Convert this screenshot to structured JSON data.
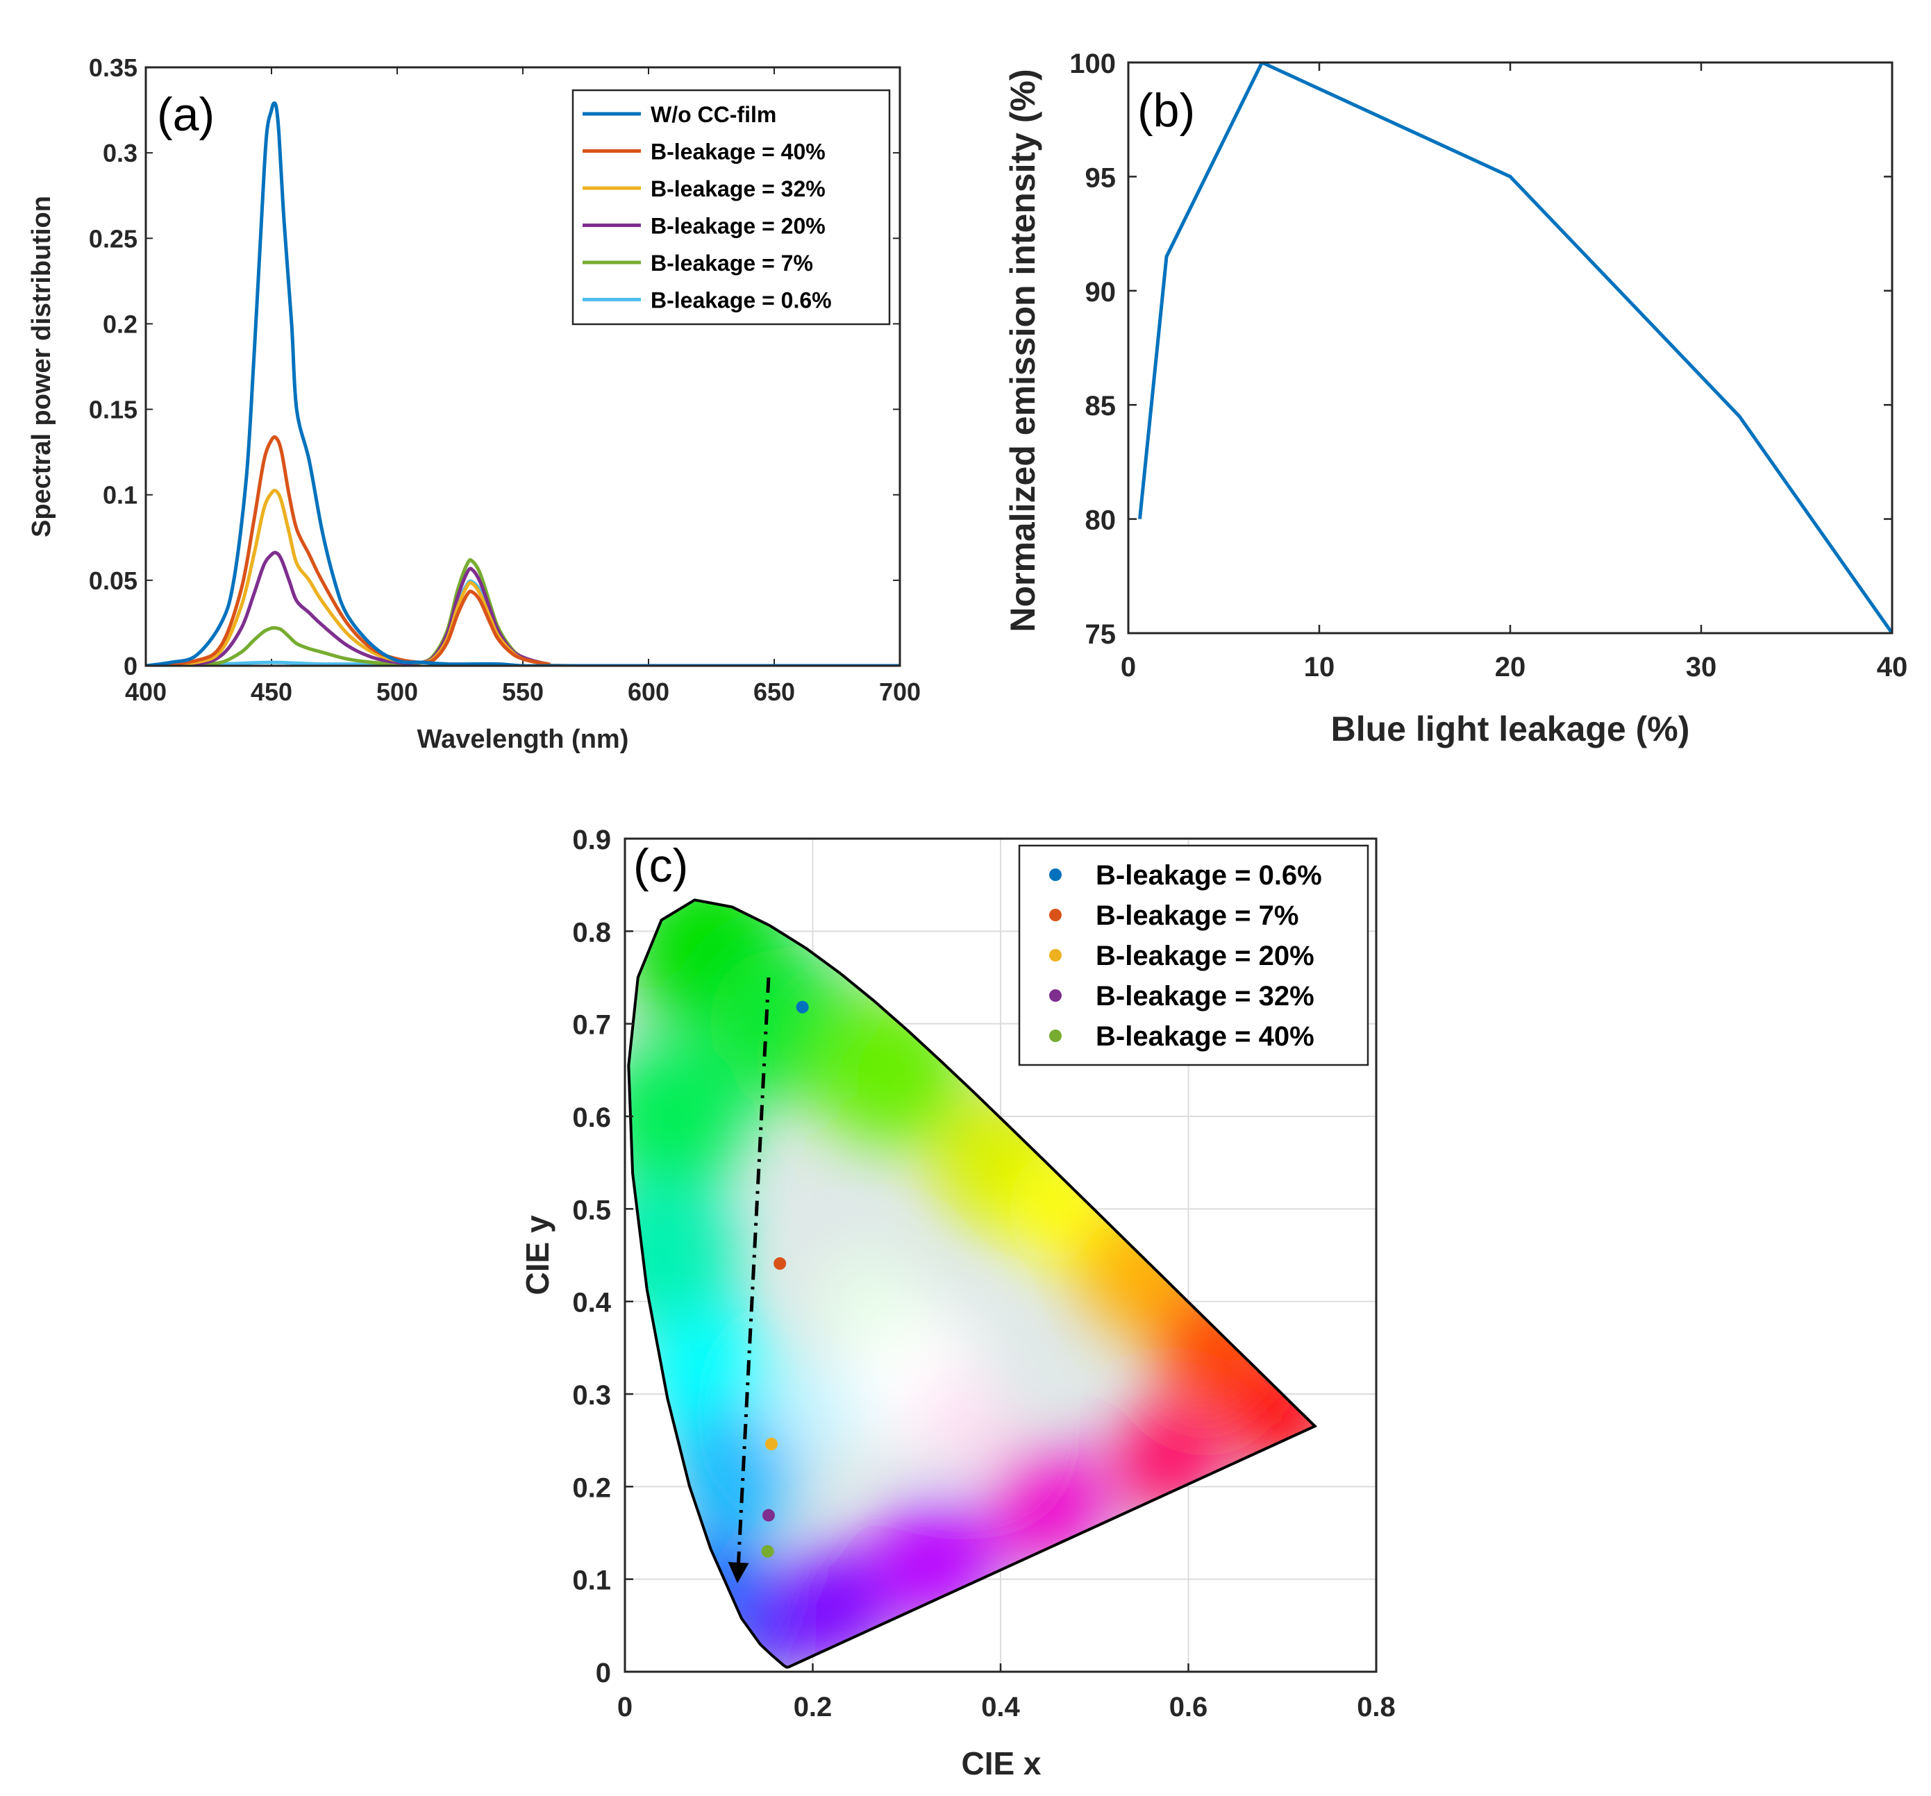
{
  "chart_data": [
    {
      "id": "a",
      "type": "line",
      "panel_label": "(a)",
      "xlabel": "Wavelength (nm)",
      "ylabel": "Spectral power distribution",
      "xlim": [
        400,
        700
      ],
      "ylim": [
        0,
        0.35
      ],
      "xticks": [
        "400",
        "450",
        "500",
        "550",
        "600",
        "650",
        "700"
      ],
      "yticks": [
        "0",
        "0.05",
        "0.1",
        "0.15",
        "0.2",
        "0.25",
        "0.3",
        "0.35"
      ],
      "legend_position": "top-right",
      "series": [
        {
          "name": "W/o CC-film",
          "color": "#0072bd",
          "x": [
            400,
            410,
            420,
            430,
            435,
            440,
            443,
            446,
            448,
            450,
            451,
            452,
            453,
            455,
            458,
            460,
            465,
            470,
            475,
            480,
            490,
            500,
            510,
            520,
            530,
            540,
            550,
            560,
            570,
            600,
            650,
            700
          ],
          "y": [
            0,
            0.002,
            0.006,
            0.025,
            0.05,
            0.11,
            0.18,
            0.26,
            0.31,
            0.325,
            0.329,
            0.326,
            0.31,
            0.26,
            0.2,
            0.15,
            0.12,
            0.08,
            0.05,
            0.03,
            0.012,
            0.003,
            0.002,
            0.001,
            0.001,
            0.001,
            0,
            0,
            0,
            0,
            0,
            0
          ]
        },
        {
          "name": "B-leakage = 40%",
          "color": "#d95319",
          "x": [
            400,
            420,
            430,
            438,
            443,
            447,
            450,
            452,
            454,
            457,
            460,
            465,
            470,
            480,
            490,
            500,
            510,
            515,
            520,
            524,
            528,
            530,
            533,
            537,
            540,
            545,
            550,
            560,
            570,
            700
          ],
          "y": [
            0,
            0.003,
            0.012,
            0.045,
            0.085,
            0.12,
            0.132,
            0.133,
            0.125,
            0.1,
            0.08,
            0.065,
            0.05,
            0.025,
            0.01,
            0.004,
            0.002,
            0.004,
            0.014,
            0.03,
            0.042,
            0.043,
            0.038,
            0.025,
            0.016,
            0.008,
            0.004,
            0.001,
            0,
            0
          ]
        },
        {
          "name": "B-leakage = 32%",
          "color": "#edb120",
          "x": [
            400,
            420,
            430,
            438,
            443,
            447,
            450,
            452,
            454,
            457,
            460,
            465,
            470,
            480,
            490,
            500,
            510,
            515,
            520,
            524,
            528,
            530,
            533,
            537,
            540,
            545,
            550,
            560,
            570,
            700
          ],
          "y": [
            0,
            0.002,
            0.009,
            0.035,
            0.065,
            0.092,
            0.101,
            0.102,
            0.096,
            0.078,
            0.06,
            0.05,
            0.038,
            0.019,
            0.008,
            0.003,
            0.002,
            0.005,
            0.016,
            0.034,
            0.047,
            0.048,
            0.042,
            0.028,
            0.018,
            0.009,
            0.004,
            0.001,
            0,
            0
          ]
        },
        {
          "name": "B-leakage = 20%",
          "color": "#7e2f8e",
          "x": [
            400,
            420,
            430,
            438,
            443,
            447,
            450,
            452,
            454,
            457,
            460,
            465,
            470,
            480,
            490,
            500,
            510,
            515,
            520,
            524,
            528,
            530,
            533,
            537,
            540,
            545,
            550,
            560,
            570,
            700
          ],
          "y": [
            0,
            0.001,
            0.006,
            0.022,
            0.042,
            0.059,
            0.065,
            0.066,
            0.062,
            0.05,
            0.038,
            0.031,
            0.024,
            0.012,
            0.005,
            0.002,
            0.002,
            0.006,
            0.019,
            0.04,
            0.055,
            0.056,
            0.049,
            0.033,
            0.021,
            0.01,
            0.005,
            0.001,
            0,
            0
          ]
        },
        {
          "name": "B-leakage = 7%",
          "color": "#77ac30",
          "x": [
            400,
            420,
            430,
            438,
            443,
            447,
            450,
            452,
            454,
            457,
            460,
            465,
            470,
            480,
            490,
            500,
            510,
            515,
            520,
            524,
            528,
            530,
            533,
            537,
            540,
            545,
            550,
            560,
            570,
            700
          ],
          "y": [
            0,
            0.001,
            0.002,
            0.008,
            0.015,
            0.02,
            0.022,
            0.022,
            0.021,
            0.017,
            0.013,
            0.01,
            0.008,
            0.004,
            0.002,
            0.001,
            0.002,
            0.007,
            0.021,
            0.044,
            0.06,
            0.061,
            0.054,
            0.036,
            0.023,
            0.011,
            0.005,
            0.001,
            0,
            0
          ]
        },
        {
          "name": "B-leakage = 0.6%",
          "color": "#4dbeee",
          "x": [
            400,
            430,
            450,
            470,
            490,
            500,
            510,
            515,
            520,
            524,
            528,
            530,
            533,
            537,
            540,
            545,
            550,
            560,
            570,
            700
          ],
          "y": [
            0,
            0.001,
            0.002,
            0.001,
            0.001,
            0.001,
            0.002,
            0.006,
            0.018,
            0.036,
            0.048,
            0.049,
            0.044,
            0.03,
            0.019,
            0.009,
            0.004,
            0.001,
            0,
            0
          ]
        }
      ]
    },
    {
      "id": "b",
      "type": "line",
      "panel_label": "(b)",
      "xlabel": "Blue light leakage (%)",
      "ylabel": "Normalized emission intensity (%)",
      "xlim": [
        0,
        40
      ],
      "ylim": [
        75,
        100
      ],
      "xticks": [
        "0",
        "10",
        "20",
        "30",
        "40"
      ],
      "yticks": [
        "75",
        "80",
        "85",
        "90",
        "95",
        "100"
      ],
      "series": [
        {
          "name": "emission",
          "color": "#0072bd",
          "x": [
            0.6,
            2,
            7,
            20,
            32,
            40
          ],
          "y": [
            80,
            91.5,
            100,
            95,
            84.5,
            75
          ]
        }
      ]
    },
    {
      "id": "c",
      "type": "scatter",
      "panel_label": "(c)",
      "xlabel": "CIE x",
      "ylabel": "CIE y",
      "xlim": [
        0,
        0.8
      ],
      "ylim": [
        0,
        0.9
      ],
      "xticks": [
        "0",
        "0.2",
        "0.4",
        "0.6",
        "0.8"
      ],
      "yticks": [
        "0",
        "0.1",
        "0.2",
        "0.3",
        "0.4",
        "0.5",
        "0.6",
        "0.7",
        "0.8",
        "0.9"
      ],
      "grid": true,
      "legend_position": "top-right",
      "background": "CIE 1931 chromaticity diagram",
      "series": [
        {
          "name": "B-leakage = 0.6%",
          "color": "#0072bd",
          "x": [
            0.189
          ],
          "y": [
            0.718
          ]
        },
        {
          "name": "B-leakage = 7%",
          "color": "#d95319",
          "x": [
            0.165
          ],
          "y": [
            0.441
          ]
        },
        {
          "name": "B-leakage = 20%",
          "color": "#edb120",
          "x": [
            0.156
          ],
          "y": [
            0.246
          ]
        },
        {
          "name": "B-leakage = 32%",
          "color": "#7e2f8e",
          "x": [
            0.153
          ],
          "y": [
            0.169
          ]
        },
        {
          "name": "B-leakage = 40%",
          "color": "#77ac30",
          "x": [
            0.152
          ],
          "y": [
            0.13
          ]
        }
      ],
      "annotation": {
        "type": "dash-dot arrow",
        "from": [
          0.153,
          0.75
        ],
        "to": [
          0.12,
          0.1
        ]
      },
      "locus": {
        "x": [
          0.1741,
          0.1721,
          0.1689,
          0.1644,
          0.1566,
          0.144,
          0.1241,
          0.0913,
          0.0687,
          0.0454,
          0.0235,
          0.0082,
          0.0039,
          0.0139,
          0.0389,
          0.0743,
          0.1142,
          0.1547,
          0.1929,
          0.2296,
          0.2658,
          0.3016,
          0.3373,
          0.3731,
          0.4087,
          0.4441,
          0.4788,
          0.5125,
          0.5448,
          0.5752,
          0.6029,
          0.627,
          0.6482,
          0.6658,
          0.6801,
          0.6915,
          0.7006,
          0.7079,
          0.714,
          0.719,
          0.723,
          0.726,
          0.7283,
          0.73,
          0.7347
        ],
        "y": [
          0.005,
          0.0048,
          0.0069,
          0.0109,
          0.0177,
          0.0297,
          0.0578,
          0.1327,
          0.2007,
          0.295,
          0.4127,
          0.5384,
          0.6548,
          0.7502,
          0.812,
          0.8338,
          0.8262,
          0.8059,
          0.7816,
          0.7543,
          0.7243,
          0.6923,
          0.6589,
          0.6245,
          0.5896,
          0.5547,
          0.5202,
          0.4866,
          0.4544,
          0.4242,
          0.3965,
          0.3725,
          0.3514,
          0.334,
          0.3197,
          0.3083,
          0.2993,
          0.292,
          0.2859,
          0.2809,
          0.277,
          0.274,
          0.2717,
          0.27,
          0.2653
        ]
      }
    }
  ]
}
